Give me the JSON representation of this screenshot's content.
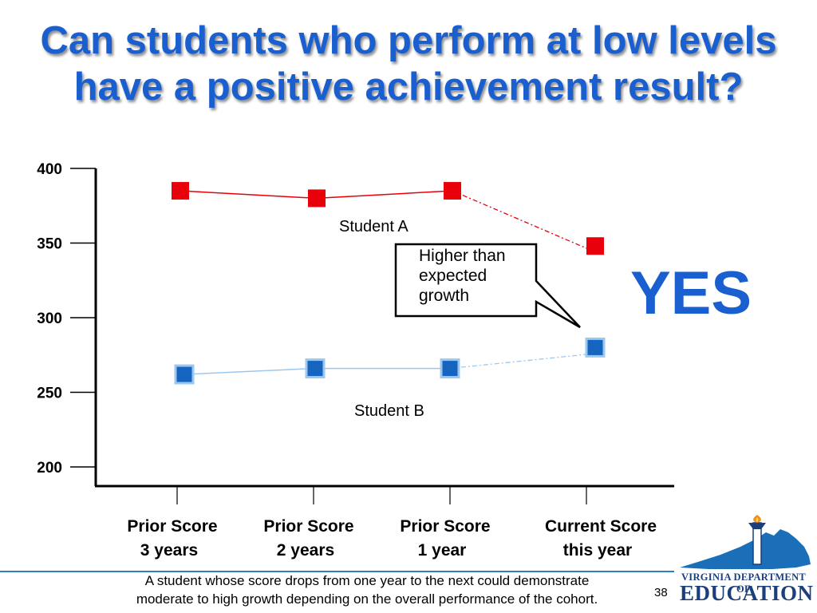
{
  "title": {
    "line1": "Can students who perform at low levels",
    "line2": "have a positive achievement result?"
  },
  "chart_data": {
    "type": "line",
    "title": "",
    "xlabel": "",
    "ylabel": "",
    "ylim": [
      200,
      400
    ],
    "y_ticks": [
      "400",
      "350",
      "300",
      "250",
      "200"
    ],
    "categories": [
      {
        "line1": "Prior Score",
        "line2": "3 years"
      },
      {
        "line1": "Prior Score",
        "line2": "2 years"
      },
      {
        "line1": "Prior Score",
        "line2": "1 year"
      },
      {
        "line1": "Current Score",
        "line2": "this year"
      }
    ],
    "series": [
      {
        "name": "Student A",
        "values": [
          385,
          380,
          385,
          348
        ],
        "color": "#e8000b",
        "line_color": "#e8000b",
        "expected_current": 344
      },
      {
        "name": "Student B",
        "values": [
          262,
          266,
          266,
          280
        ],
        "color": "#1565c0",
        "line_color": "#9cc8ee",
        "expected_current": 276
      }
    ],
    "grid": false,
    "callout": {
      "lines": [
        "Higher than",
        "expected",
        "growth"
      ]
    },
    "verdict": "YES",
    "verdict_color": "#1a5fcf"
  },
  "footnote": {
    "line1": "A student whose score drops from one year to the next could demonstrate",
    "line2": "moderate to high growth depending on the overall performance of the cohort."
  },
  "page_number": "38",
  "logo": {
    "line1": "VIRGINIA DEPARTMENT OF",
    "line2": "EDUCATION",
    "icon": "virginia-torch-logo"
  }
}
